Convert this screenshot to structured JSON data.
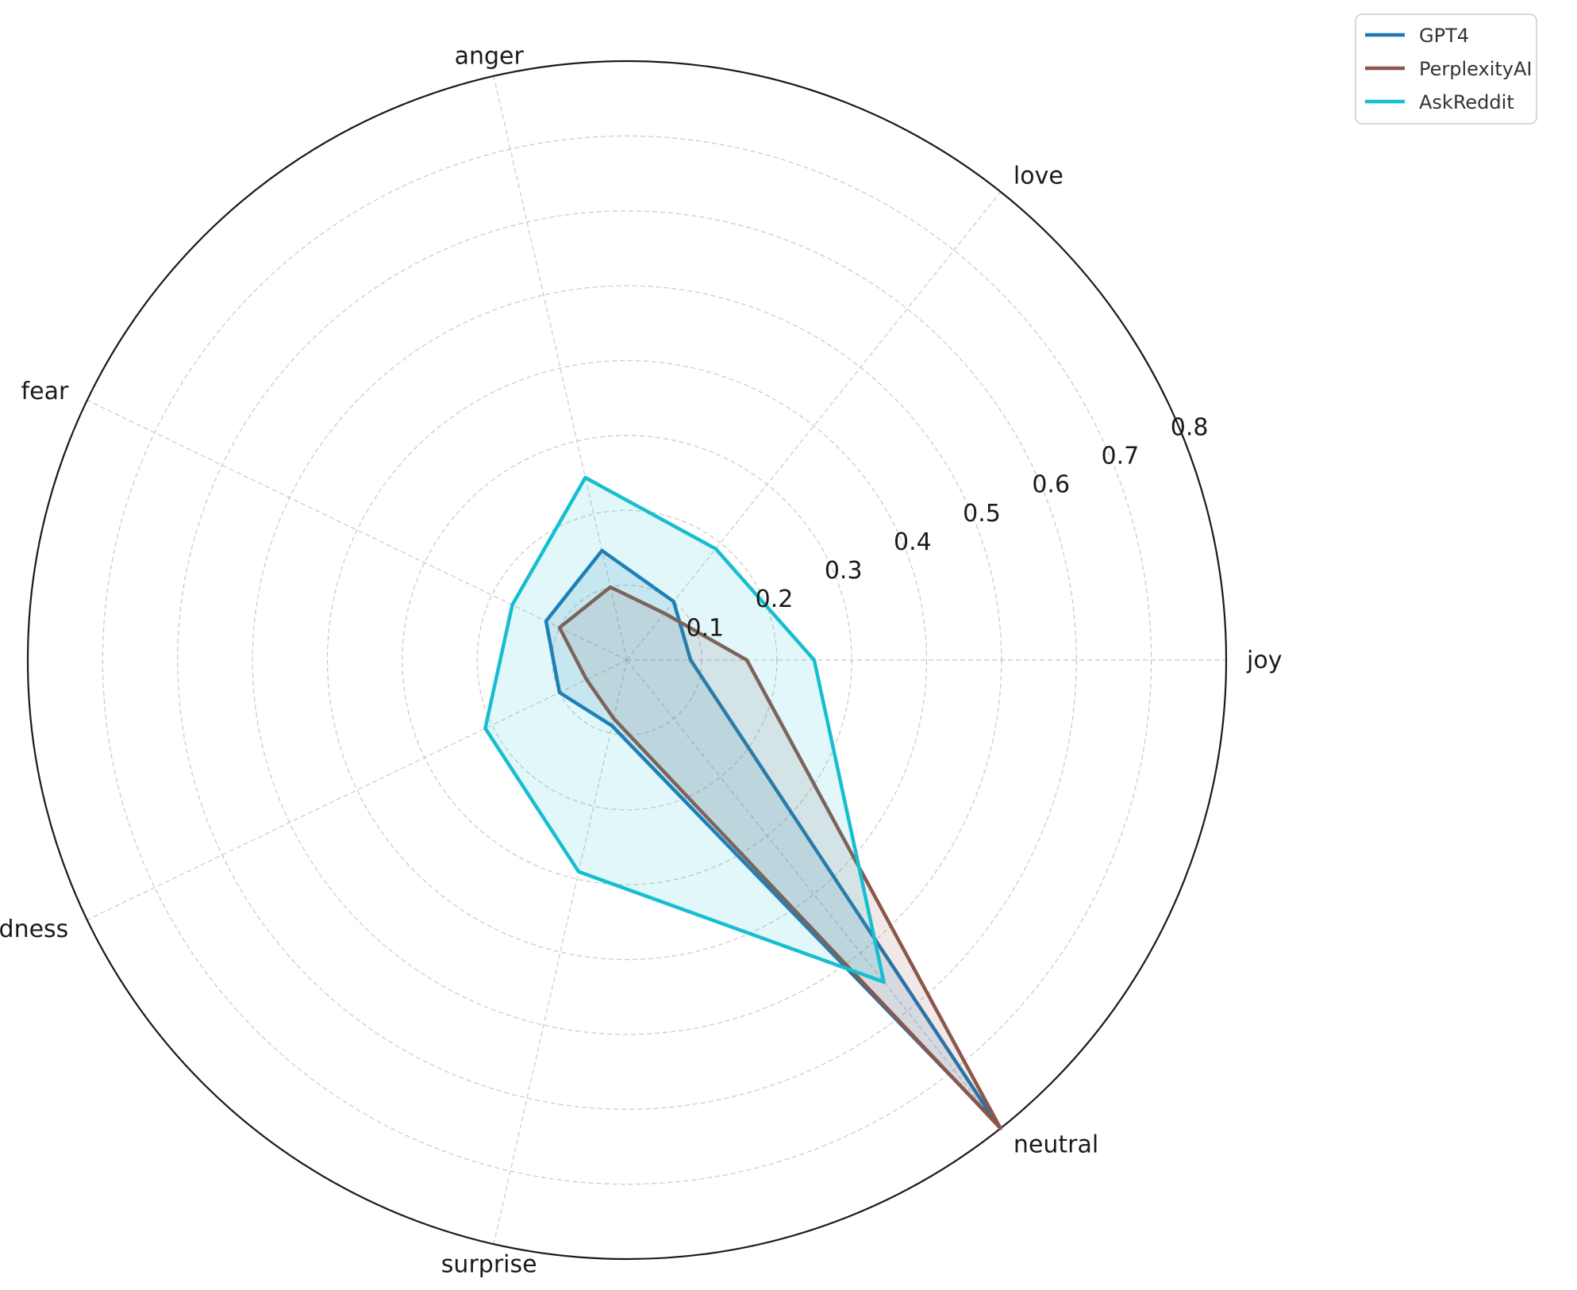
{
  "chart_data": {
    "type": "radar",
    "categories": [
      "joy",
      "love",
      "anger",
      "fear",
      "sadness",
      "surprise",
      "neutral"
    ],
    "radial_ticks": [
      "0.1",
      "0.2",
      "0.3",
      "0.4",
      "0.5",
      "0.6",
      "0.7",
      "0.8"
    ],
    "rlim": [
      0,
      0.8
    ],
    "grid": true,
    "legend_position": "top-right, outside",
    "series": [
      {
        "name": "GPT4",
        "color": "#1f77b4",
        "values": [
          0.085,
          0.1,
          0.15,
          0.12,
          0.1,
          0.09,
          0.79
        ]
      },
      {
        "name": "PerplexityAI",
        "color": "#8c564b",
        "values": [
          0.16,
          0.08,
          0.1,
          0.1,
          0.06,
          0.08,
          0.8
        ]
      },
      {
        "name": "AskReddit",
        "color": "#17becf",
        "values": [
          0.25,
          0.19,
          0.25,
          0.17,
          0.21,
          0.29,
          0.55
        ]
      }
    ]
  }
}
